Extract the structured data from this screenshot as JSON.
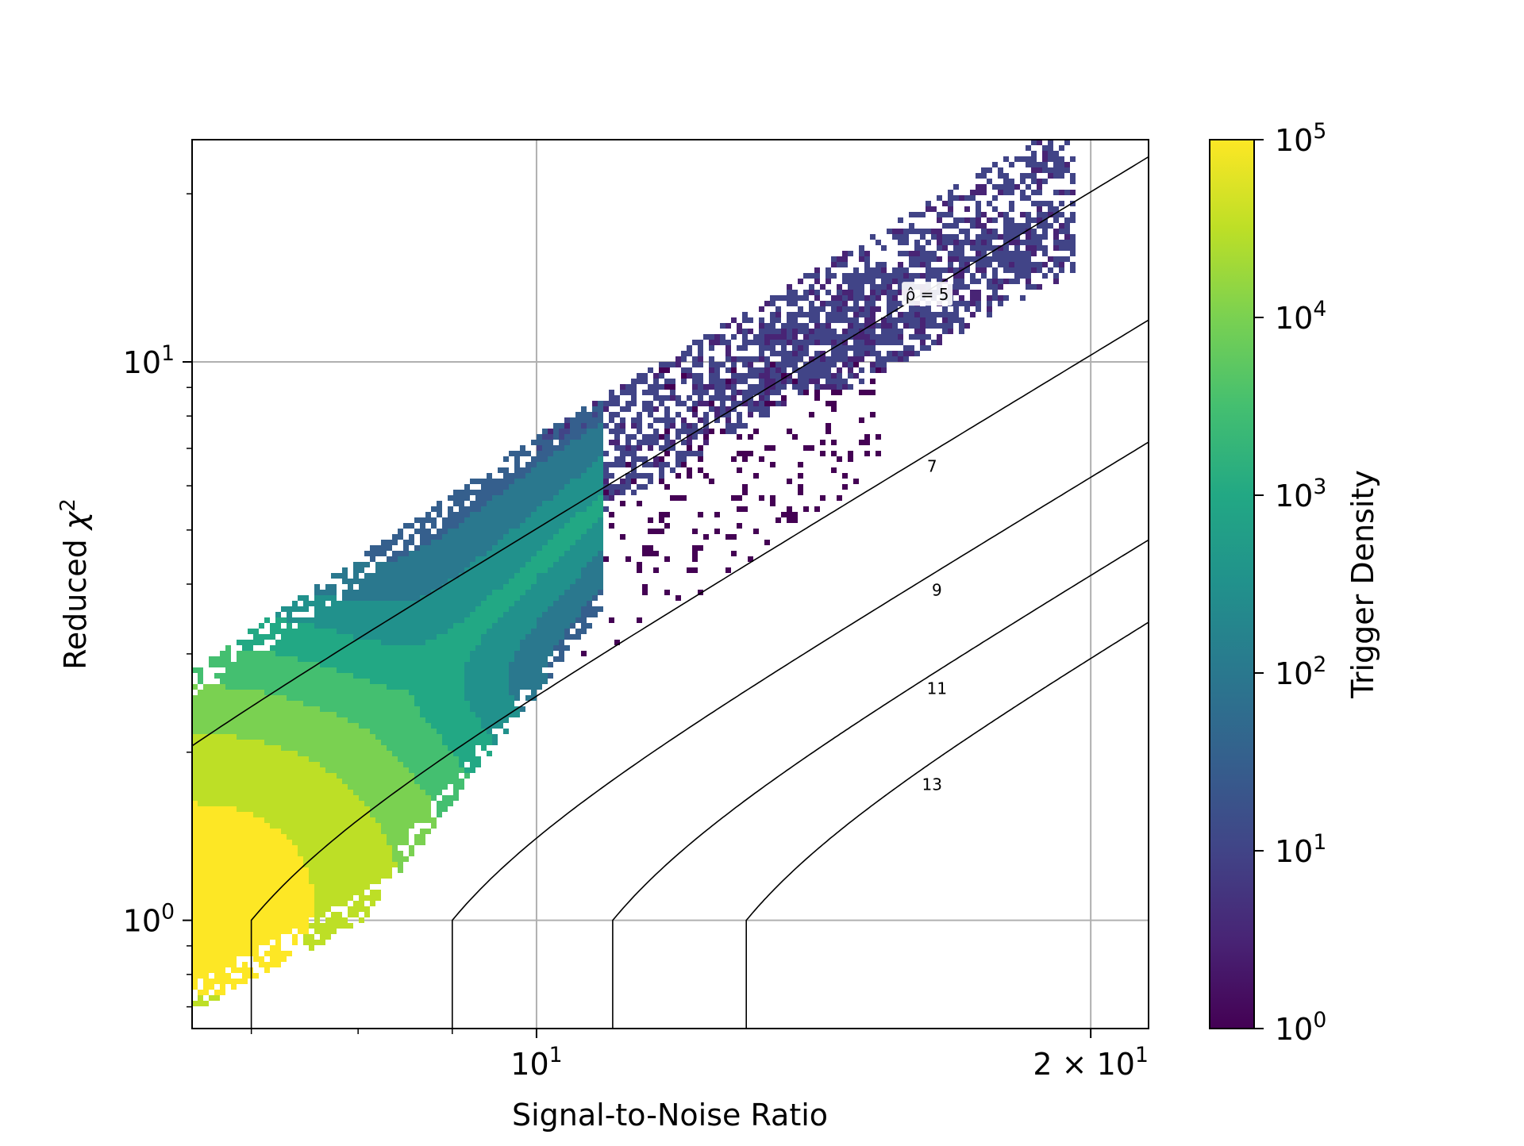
{
  "chart_data": {
    "type": "heatmap",
    "subtype": "hexbin",
    "title": "",
    "xlabel": "Signal-to-Noise Ratio",
    "ylabel": "Reduced χ²",
    "xscale": "log",
    "yscale": "log",
    "xlim": [
      6.5,
      21.5
    ],
    "ylim": [
      0.64,
      25
    ],
    "grid": true,
    "x_ticks": [
      {
        "value": 10,
        "label_base": "10",
        "label_exp": "1"
      },
      {
        "value": 20,
        "label_base": "2 × 10",
        "label_exp": "1"
      }
    ],
    "x_minor_ticks": [
      7,
      8,
      9
    ],
    "y_ticks": [
      {
        "value": 1,
        "label_base": "10",
        "label_exp": "0"
      },
      {
        "value": 10,
        "label_base": "10",
        "label_exp": "1"
      }
    ],
    "colorbar": {
      "label": "Trigger Density",
      "scale": "log",
      "colormap": "viridis",
      "range": [
        1,
        100000
      ],
      "ticks": [
        {
          "value": 1,
          "label_base": "10",
          "label_exp": "0"
        },
        {
          "value": 10,
          "label_base": "10",
          "label_exp": "1"
        },
        {
          "value": 100,
          "label_base": "10",
          "label_exp": "2"
        },
        {
          "value": 1000,
          "label_base": "10",
          "label_exp": "3"
        },
        {
          "value": 10000,
          "label_base": "10",
          "label_exp": "4"
        },
        {
          "value": 100000,
          "label_base": "10",
          "label_exp": "5"
        }
      ]
    },
    "contours": [
      {
        "level": 5,
        "label": "ρ̂ = 5",
        "label_at": [
          16.3,
          13.2
        ]
      },
      {
        "level": 7,
        "label": "7",
        "label_at": [
          16.4,
          6.5
        ]
      },
      {
        "level": 9,
        "label": "9",
        "label_at": [
          16.5,
          3.9
        ]
      },
      {
        "level": 11,
        "label": "11",
        "label_at": [
          16.5,
          2.6
        ]
      },
      {
        "level": 13,
        "label": "13",
        "label_at": [
          16.4,
          1.75
        ]
      }
    ],
    "density_regions": [
      {
        "name": "dense-core",
        "x": [
          6.5,
          7.4
        ],
        "y": [
          0.75,
          1.5
        ],
        "peak_density": 100000
      },
      {
        "name": "main-band",
        "x": [
          6.5,
          10.8
        ],
        "y_lower_at": [
          [
            6.5,
            0.7
          ],
          [
            8.0,
            1.0
          ],
          [
            10.0,
            2.6
          ]
        ],
        "y_upper_at": [
          [
            6.5,
            2.85
          ],
          [
            10.0,
            7.5
          ],
          [
            17.3,
            22.0
          ]
        ],
        "typical_density": 100
      },
      {
        "name": "upper-branch",
        "x": [
          13.0,
          19.6
        ],
        "y": [
          9.0,
          18.0
        ],
        "typical_density": 3
      },
      {
        "name": "sparse-tail",
        "x": [
          10.0,
          15.3
        ],
        "y": [
          3.0,
          10.0
        ],
        "typical_density": 1
      }
    ]
  }
}
